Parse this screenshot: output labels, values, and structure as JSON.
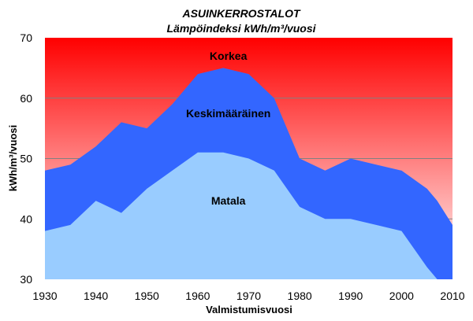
{
  "chart_data": {
    "type": "area",
    "title": "ASUINKERROSTALOT",
    "subtitle": "Lämpöindeksi kWh/m³/vuosi",
    "xlabel": "Valmistumisvuosi",
    "ylabel": "kWh/m³/vuosi",
    "xlim": [
      1930,
      2010
    ],
    "ylim": [
      30,
      70
    ],
    "x_ticks": [
      1930,
      1940,
      1950,
      1960,
      1970,
      1980,
      1990,
      2000,
      2010
    ],
    "y_ticks": [
      30,
      40,
      50,
      60,
      70
    ],
    "grid": "horizontal",
    "x": [
      1930,
      1935,
      1940,
      1945,
      1950,
      1955,
      1960,
      1965,
      1970,
      1975,
      1980,
      1985,
      1990,
      1995,
      2000,
      2005,
      2007,
      2010
    ],
    "series": [
      {
        "name": "Keskimääräinen",
        "values": [
          48,
          49,
          52,
          56,
          55,
          59,
          64,
          65,
          64,
          60,
          50,
          48,
          50,
          49,
          48,
          45,
          43,
          39
        ],
        "color": "#3366ff"
      },
      {
        "name": "Matala",
        "values": [
          38,
          39,
          43,
          41,
          45,
          48,
          51,
          51,
          50,
          48,
          42,
          40,
          40,
          39,
          38,
          32,
          30,
          30
        ],
        "color": "#99ccff"
      }
    ],
    "region_labels": [
      {
        "text": "Korkea",
        "x": 1966,
        "y": 67
      },
      {
        "text": "Keskimääräinen",
        "x": 1966,
        "y": 57.5
      },
      {
        "text": "Matala",
        "x": 1966,
        "y": 43
      }
    ],
    "colors": {
      "top_band_top": "#ff0000",
      "top_band_bottom": "#ffffff",
      "mid_band": "#3366ff",
      "low_band": "#99ccff",
      "grid": "#808080"
    }
  }
}
